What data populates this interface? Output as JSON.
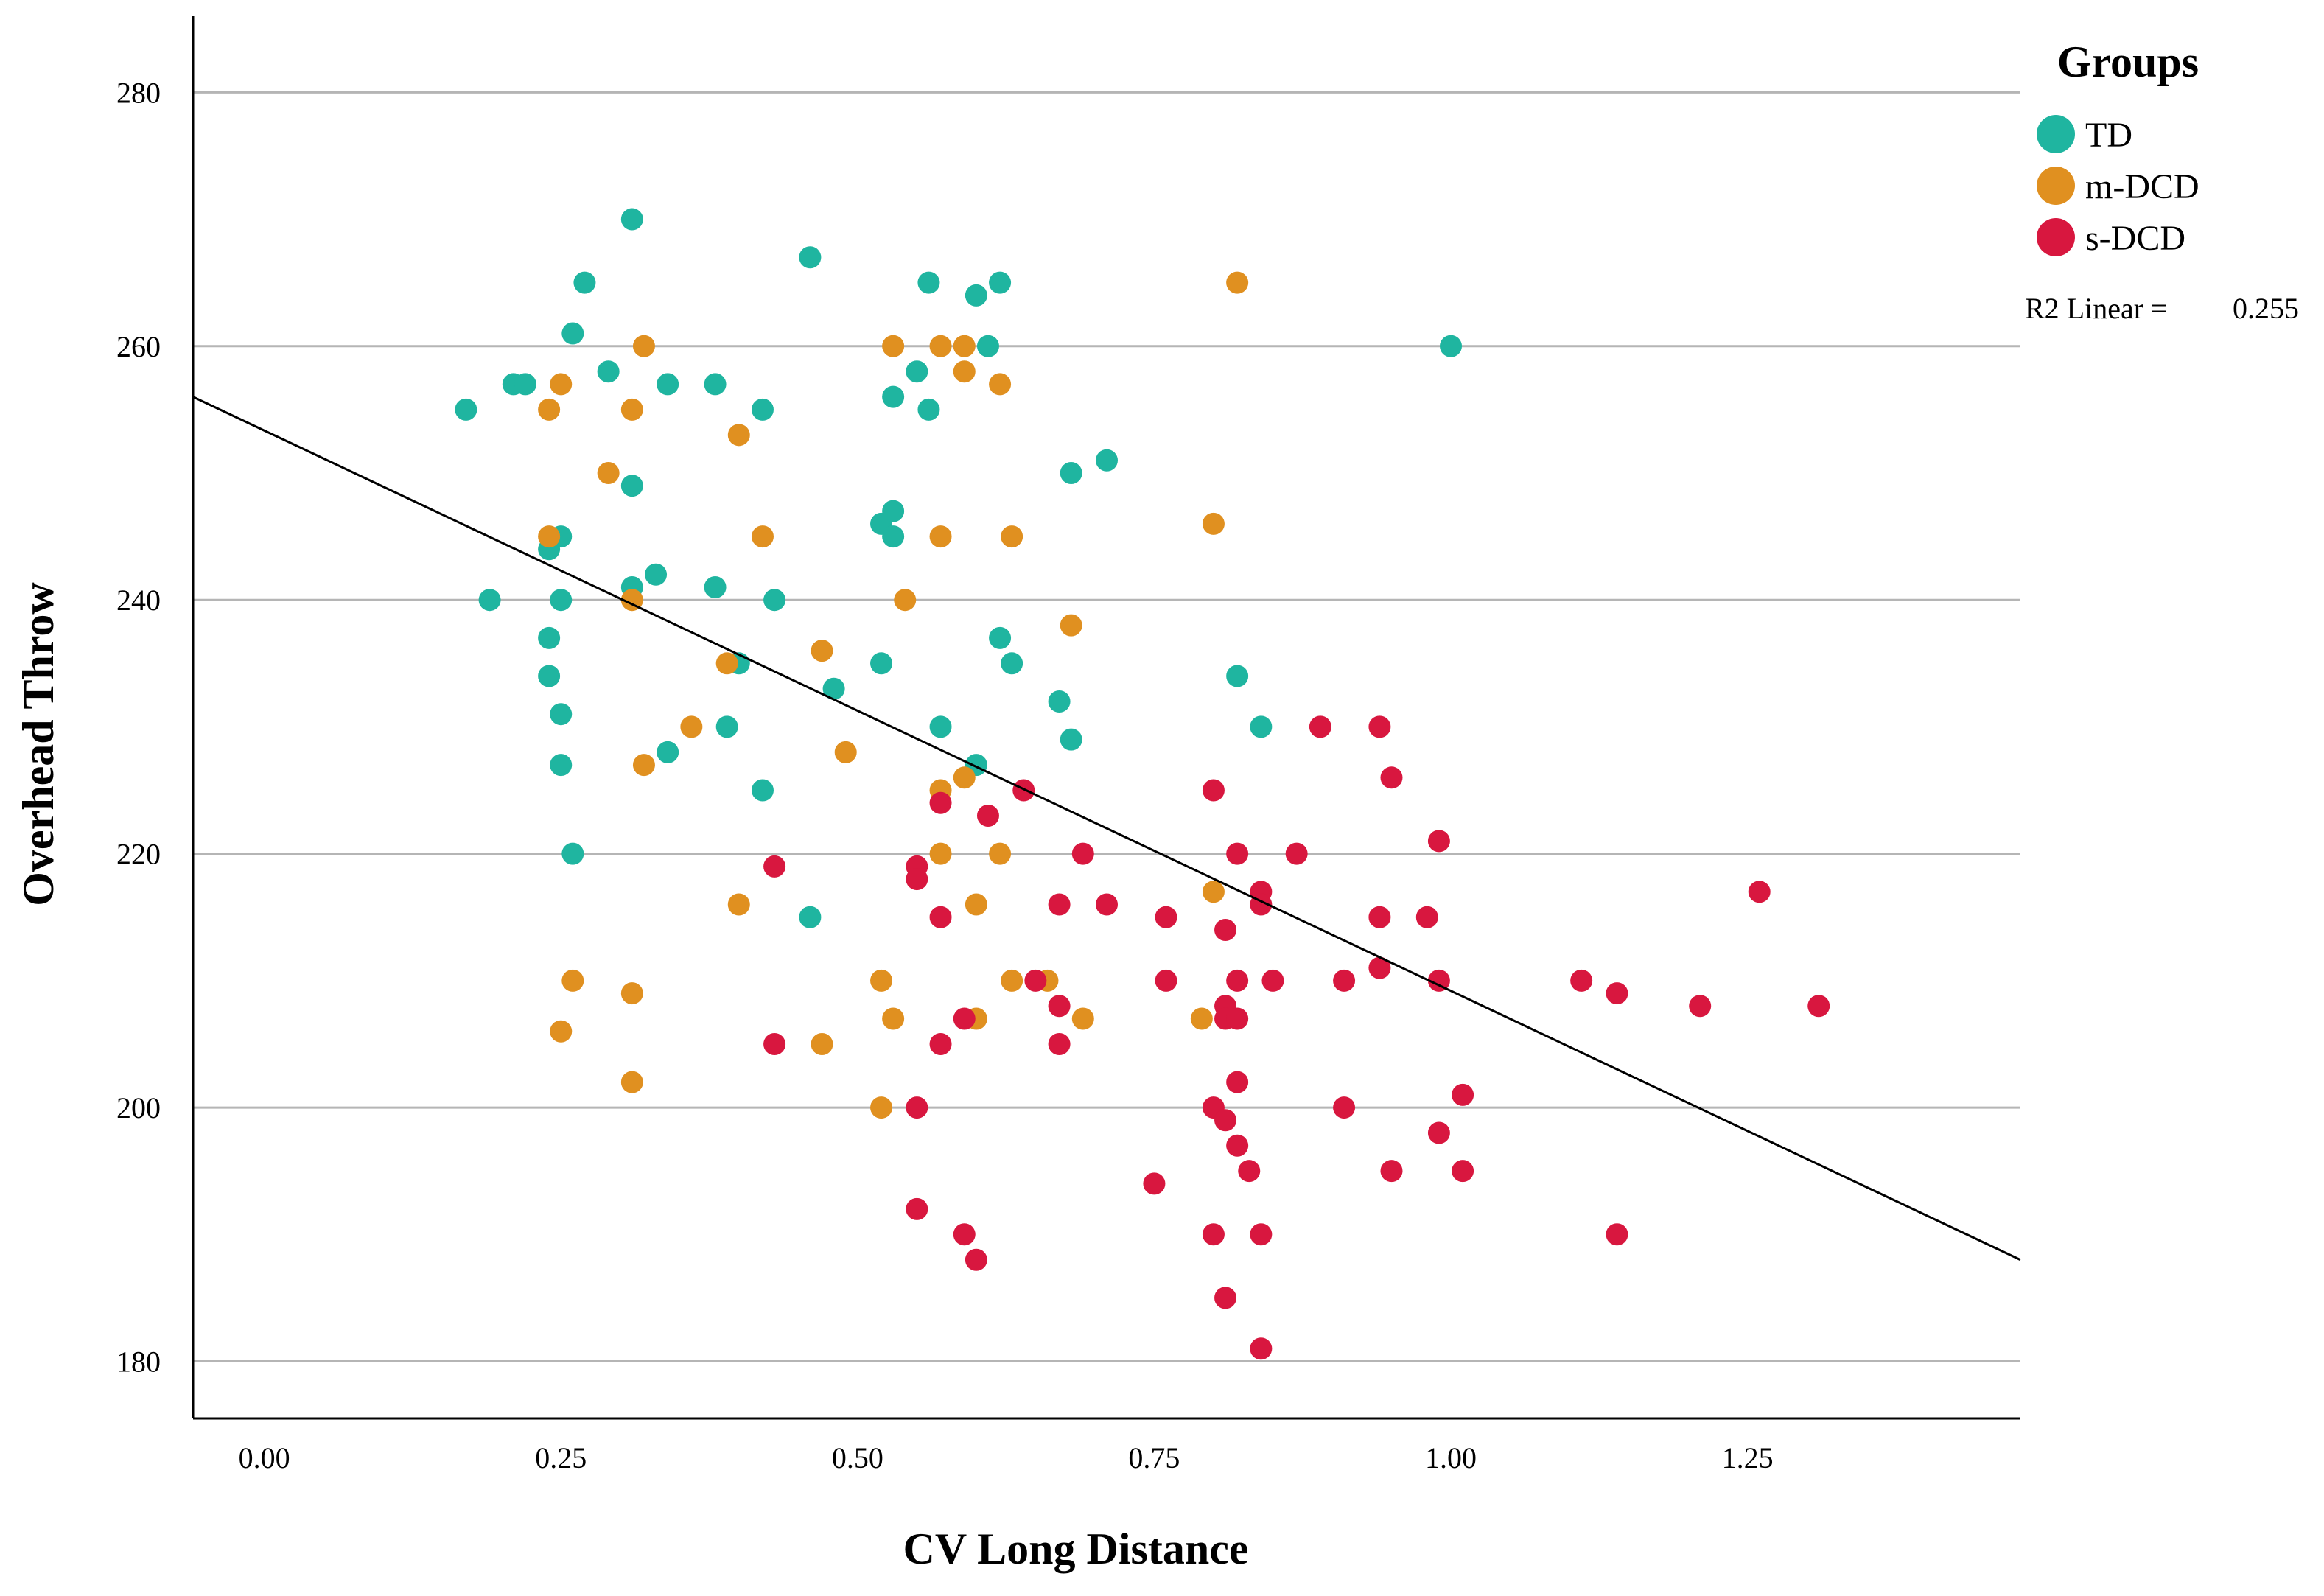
{
  "chart_data": {
    "type": "scatter",
    "xlabel": "CV Long Distance",
    "ylabel": "Overhead Throw",
    "xlim": [
      -0.06,
      1.48
    ],
    "ylim": [
      175.5,
      286
    ],
    "x_ticks": [
      {
        "value": 0.0,
        "label": "0.00"
      },
      {
        "value": 0.25,
        "label": "0.25"
      },
      {
        "value": 0.5,
        "label": "0.50"
      },
      {
        "value": 0.75,
        "label": "0.75"
      },
      {
        "value": 1.0,
        "label": "1.00"
      },
      {
        "value": 1.25,
        "label": "1.25"
      }
    ],
    "y_ticks": [
      {
        "value": 180,
        "label": "180"
      },
      {
        "value": 200,
        "label": "200"
      },
      {
        "value": 220,
        "label": "220"
      },
      {
        "value": 240,
        "label": "240"
      },
      {
        "value": 260,
        "label": "260"
      },
      {
        "value": 280,
        "label": "280"
      }
    ],
    "horizontal_grid": true,
    "legend": {
      "title": "Groups",
      "position": "top-right",
      "r2_label": "R2 Linear =",
      "r2_value": "0.255"
    },
    "fit_line": {
      "x": [
        -0.06,
        1.48
      ],
      "y": [
        256,
        188
      ]
    },
    "series": [
      {
        "name": "TD",
        "color": "#1fb5a0",
        "points": [
          [
            0.31,
            270
          ],
          [
            0.46,
            267
          ],
          [
            0.27,
            265
          ],
          [
            0.56,
            265
          ],
          [
            0.62,
            265
          ],
          [
            0.6,
            264
          ],
          [
            0.26,
            261
          ],
          [
            0.61,
            260
          ],
          [
            1.0,
            260
          ],
          [
            0.21,
            257
          ],
          [
            0.22,
            257
          ],
          [
            0.34,
            257
          ],
          [
            0.38,
            257
          ],
          [
            0.29,
            258
          ],
          [
            0.55,
            258
          ],
          [
            0.17,
            255
          ],
          [
            0.42,
            255
          ],
          [
            0.56,
            255
          ],
          [
            0.53,
            256
          ],
          [
            0.31,
            249
          ],
          [
            0.68,
            250
          ],
          [
            0.71,
            251
          ],
          [
            0.52,
            246
          ],
          [
            0.53,
            247
          ],
          [
            0.53,
            245
          ],
          [
            0.25,
            245
          ],
          [
            0.24,
            244
          ],
          [
            0.33,
            242
          ],
          [
            0.31,
            241
          ],
          [
            0.38,
            241
          ],
          [
            0.19,
            240
          ],
          [
            0.25,
            240
          ],
          [
            0.43,
            240
          ],
          [
            0.24,
            237
          ],
          [
            0.62,
            237
          ],
          [
            0.24,
            234
          ],
          [
            0.4,
            235
          ],
          [
            0.52,
            235
          ],
          [
            0.63,
            235
          ],
          [
            0.82,
            234
          ],
          [
            0.48,
            233
          ],
          [
            0.25,
            231
          ],
          [
            0.67,
            232
          ],
          [
            0.39,
            230
          ],
          [
            0.57,
            230
          ],
          [
            0.84,
            230
          ],
          [
            0.68,
            229
          ],
          [
            0.34,
            228
          ],
          [
            0.25,
            227
          ],
          [
            0.6,
            227
          ],
          [
            0.42,
            225
          ],
          [
            0.26,
            220
          ],
          [
            0.46,
            215
          ]
        ]
      },
      {
        "name": "m-DCD",
        "color": "#e09020",
        "points": [
          [
            0.82,
            265
          ],
          [
            0.32,
            260
          ],
          [
            0.53,
            260
          ],
          [
            0.57,
            260
          ],
          [
            0.59,
            260
          ],
          [
            0.59,
            258
          ],
          [
            0.62,
            257
          ],
          [
            0.25,
            257
          ],
          [
            0.24,
            255
          ],
          [
            0.31,
            255
          ],
          [
            0.4,
            253
          ],
          [
            0.29,
            250
          ],
          [
            0.8,
            246
          ],
          [
            0.24,
            245
          ],
          [
            0.42,
            245
          ],
          [
            0.57,
            245
          ],
          [
            0.63,
            245
          ],
          [
            0.31,
            240
          ],
          [
            0.54,
            240
          ],
          [
            0.68,
            238
          ],
          [
            0.47,
            236
          ],
          [
            0.39,
            235
          ],
          [
            0.36,
            230
          ],
          [
            0.49,
            228
          ],
          [
            0.32,
            227
          ],
          [
            0.59,
            226
          ],
          [
            0.57,
            225
          ],
          [
            0.57,
            220
          ],
          [
            0.62,
            220
          ],
          [
            0.8,
            217
          ],
          [
            0.4,
            216
          ],
          [
            0.6,
            216
          ],
          [
            0.26,
            210
          ],
          [
            0.52,
            210
          ],
          [
            0.63,
            210
          ],
          [
            0.66,
            210
          ],
          [
            0.31,
            209
          ],
          [
            0.53,
            207
          ],
          [
            0.6,
            207
          ],
          [
            0.69,
            207
          ],
          [
            0.79,
            207
          ],
          [
            0.25,
            206
          ],
          [
            0.47,
            205
          ],
          [
            0.31,
            202
          ],
          [
            0.52,
            200
          ]
        ]
      },
      {
        "name": "s-DCD",
        "color": "#d8173f",
        "points": [
          [
            0.89,
            230
          ],
          [
            0.94,
            230
          ],
          [
            0.95,
            226
          ],
          [
            0.64,
            225
          ],
          [
            0.8,
            225
          ],
          [
            0.57,
            224
          ],
          [
            0.61,
            223
          ],
          [
            0.99,
            221
          ],
          [
            0.43,
            219
          ],
          [
            0.55,
            219
          ],
          [
            0.69,
            220
          ],
          [
            0.82,
            220
          ],
          [
            0.87,
            220
          ],
          [
            0.55,
            218
          ],
          [
            1.26,
            217
          ],
          [
            0.84,
            217
          ],
          [
            0.67,
            216
          ],
          [
            0.71,
            216
          ],
          [
            0.84,
            216
          ],
          [
            0.57,
            215
          ],
          [
            0.76,
            215
          ],
          [
            0.94,
            215
          ],
          [
            0.98,
            215
          ],
          [
            0.81,
            214
          ],
          [
            0.94,
            211
          ],
          [
            0.65,
            210
          ],
          [
            0.76,
            210
          ],
          [
            0.82,
            210
          ],
          [
            0.85,
            210
          ],
          [
            0.91,
            210
          ],
          [
            0.99,
            210
          ],
          [
            1.11,
            210
          ],
          [
            1.14,
            209
          ],
          [
            0.67,
            208
          ],
          [
            0.81,
            208
          ],
          [
            1.21,
            208
          ],
          [
            1.31,
            208
          ],
          [
            0.59,
            207
          ],
          [
            0.81,
            207
          ],
          [
            0.82,
            207
          ],
          [
            0.43,
            205
          ],
          [
            0.57,
            205
          ],
          [
            0.67,
            205
          ],
          [
            0.82,
            202
          ],
          [
            1.01,
            201
          ],
          [
            0.55,
            200
          ],
          [
            0.8,
            200
          ],
          [
            0.91,
            200
          ],
          [
            0.81,
            199
          ],
          [
            0.99,
            198
          ],
          [
            0.82,
            197
          ],
          [
            0.83,
            195
          ],
          [
            0.95,
            195
          ],
          [
            1.01,
            195
          ],
          [
            0.75,
            194
          ],
          [
            0.55,
            192
          ],
          [
            0.59,
            190
          ],
          [
            0.8,
            190
          ],
          [
            0.84,
            190
          ],
          [
            1.14,
            190
          ],
          [
            0.6,
            188
          ],
          [
            0.81,
            185
          ],
          [
            0.84,
            181
          ]
        ]
      }
    ]
  }
}
